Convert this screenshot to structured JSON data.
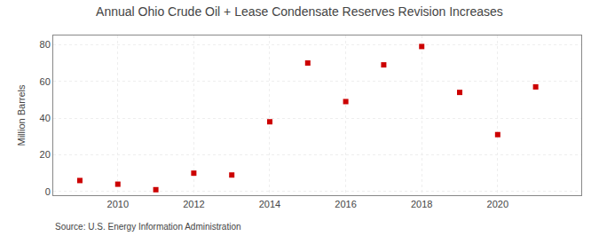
{
  "chart_data": {
    "type": "scatter",
    "title": "Annual Ohio Crude Oil + Lease Condensate Reserves Revision Increases",
    "ylabel": "Million Barrels",
    "annotations": [
      "Source: U.S. Energy Information Administration"
    ],
    "x": [
      2009,
      2010,
      2011,
      2012,
      2013,
      2014,
      2015,
      2016,
      2017,
      2018,
      2019,
      2020,
      2021
    ],
    "values": [
      6,
      4,
      1,
      10,
      9,
      38,
      70,
      49,
      69,
      79,
      54,
      31,
      57
    ],
    "color": "#cc0000",
    "marker": "square",
    "xlim": [
      2008.3,
      2022.2
    ],
    "xticks": [
      2010,
      2012,
      2014,
      2016,
      2018,
      2020
    ],
    "ylim": [
      -2,
      85
    ],
    "yticks": [
      0,
      20,
      40,
      60,
      80
    ],
    "grid": true
  }
}
